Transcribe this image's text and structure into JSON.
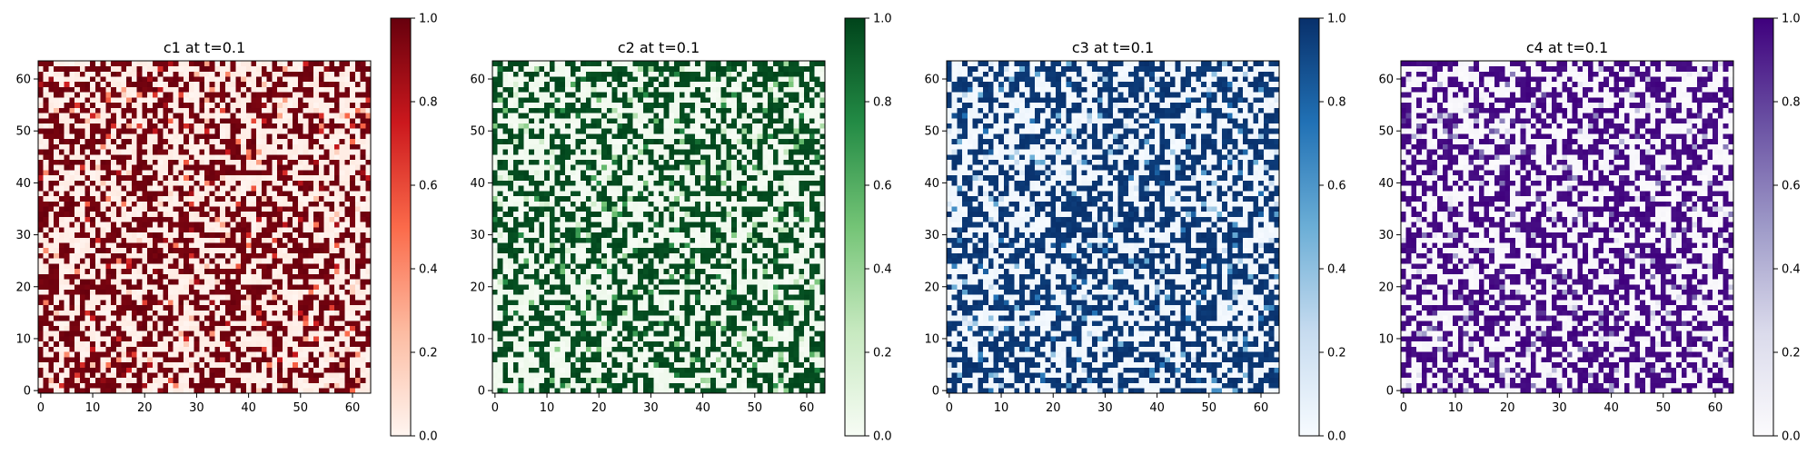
{
  "chart_data": [
    {
      "type": "heatmap",
      "title": "c1 at t=0.1",
      "grid_size": [
        64,
        64
      ],
      "xlim": [
        -0.5,
        63.5
      ],
      "ylim": [
        -0.5,
        63.5
      ],
      "x_ticks": [
        0,
        10,
        20,
        30,
        40,
        50,
        60
      ],
      "y_ticks": [
        0,
        10,
        20,
        30,
        40,
        50,
        60
      ],
      "colorbar_range": [
        0.0,
        1.0
      ],
      "colorbar_ticks": [
        "0.0",
        "0.2",
        "0.4",
        "0.6",
        "0.8",
        "1.0"
      ],
      "colormap": "Reds",
      "colors": [
        "#fff5f0",
        "#fcbba1",
        "#fb6a4a",
        "#cb181d",
        "#67000d"
      ],
      "value_distribution": "mostly binary 0/1 random pattern with some intermediate values",
      "grid": false
    },
    {
      "type": "heatmap",
      "title": "c2 at t=0.1",
      "grid_size": [
        64,
        64
      ],
      "xlim": [
        -0.5,
        63.5
      ],
      "ylim": [
        -0.5,
        63.5
      ],
      "x_ticks": [
        0,
        10,
        20,
        30,
        40,
        50,
        60
      ],
      "y_ticks": [
        0,
        10,
        20,
        30,
        40,
        50,
        60
      ],
      "colorbar_range": [
        0.0,
        1.0
      ],
      "colorbar_ticks": [
        "0.0",
        "0.2",
        "0.4",
        "0.6",
        "0.8",
        "1.0"
      ],
      "colormap": "Greens",
      "colors": [
        "#f7fcf5",
        "#c7e9c0",
        "#74c476",
        "#238b45",
        "#00441b"
      ],
      "value_distribution": "mostly binary 0/1 random pattern with some intermediate values",
      "grid": false
    },
    {
      "type": "heatmap",
      "title": "c3 at t=0.1",
      "grid_size": [
        64,
        64
      ],
      "xlim": [
        -0.5,
        63.5
      ],
      "ylim": [
        -0.5,
        63.5
      ],
      "x_ticks": [
        0,
        10,
        20,
        30,
        40,
        50,
        60
      ],
      "y_ticks": [
        0,
        10,
        20,
        30,
        40,
        50,
        60
      ],
      "colorbar_range": [
        0.0,
        1.0
      ],
      "colorbar_ticks": [
        "0.0",
        "0.2",
        "0.4",
        "0.6",
        "0.8",
        "1.0"
      ],
      "colormap": "Blues",
      "colors": [
        "#f7fbff",
        "#c6dbef",
        "#6baed6",
        "#2171b5",
        "#08306b"
      ],
      "value_distribution": "mostly binary 0/1 random pattern with some intermediate values",
      "grid": false
    },
    {
      "type": "heatmap",
      "title": "c4 at t=0.1",
      "grid_size": [
        64,
        64
      ],
      "xlim": [
        -0.5,
        63.5
      ],
      "ylim": [
        -0.5,
        63.5
      ],
      "x_ticks": [
        0,
        10,
        20,
        30,
        40,
        50,
        60
      ],
      "y_ticks": [
        0,
        10,
        20,
        30,
        40,
        50,
        60
      ],
      "colorbar_range": [
        0.0,
        1.0
      ],
      "colorbar_ticks": [
        "0.0",
        "0.2",
        "0.4",
        "0.6",
        "0.8",
        "1.0"
      ],
      "colormap": "Purples",
      "colors": [
        "#fcfbfd",
        "#dadaeb",
        "#9e9ac8",
        "#6a51a3",
        "#3f007d"
      ],
      "value_distribution": "mostly binary 0/1 random pattern with some intermediate values",
      "grid": false
    }
  ]
}
